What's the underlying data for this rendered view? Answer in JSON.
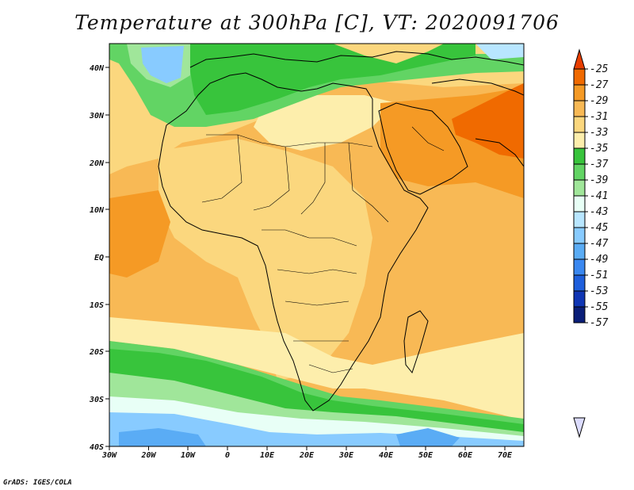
{
  "title": "Temperature at 300hPa [C], VT: 2020091706",
  "credit": "GrADS: IGES/COLA",
  "map": {
    "lon_labels": [
      "30W",
      "20W",
      "10W",
      "0",
      "10E",
      "20E",
      "30E",
      "40E",
      "50E",
      "60E",
      "70E"
    ],
    "lat_labels": [
      "40N",
      "30N",
      "20N",
      "10N",
      "EQ",
      "10S",
      "20S",
      "30S",
      "40S"
    ]
  },
  "colorbar": {
    "labels": [
      "-25",
      "-27",
      "-29",
      "-31",
      "-33",
      "-35",
      "-37",
      "-39",
      "-41",
      "-43",
      "-45",
      "-47",
      "-49",
      "-51",
      "-53",
      "-55",
      "-57"
    ],
    "colors": [
      "#e83e00",
      "#f06a00",
      "#f59a25",
      "#f8b955",
      "#fbd77e",
      "#fdeeac",
      "#38c43c",
      "#62d464",
      "#a0e69a",
      "#e8fff6",
      "#b8e6ff",
      "#88cbff",
      "#5aacf5",
      "#3a88f0",
      "#1e5fdc",
      "#1036b4",
      "#0a1e78",
      "#dcdcff"
    ]
  }
}
